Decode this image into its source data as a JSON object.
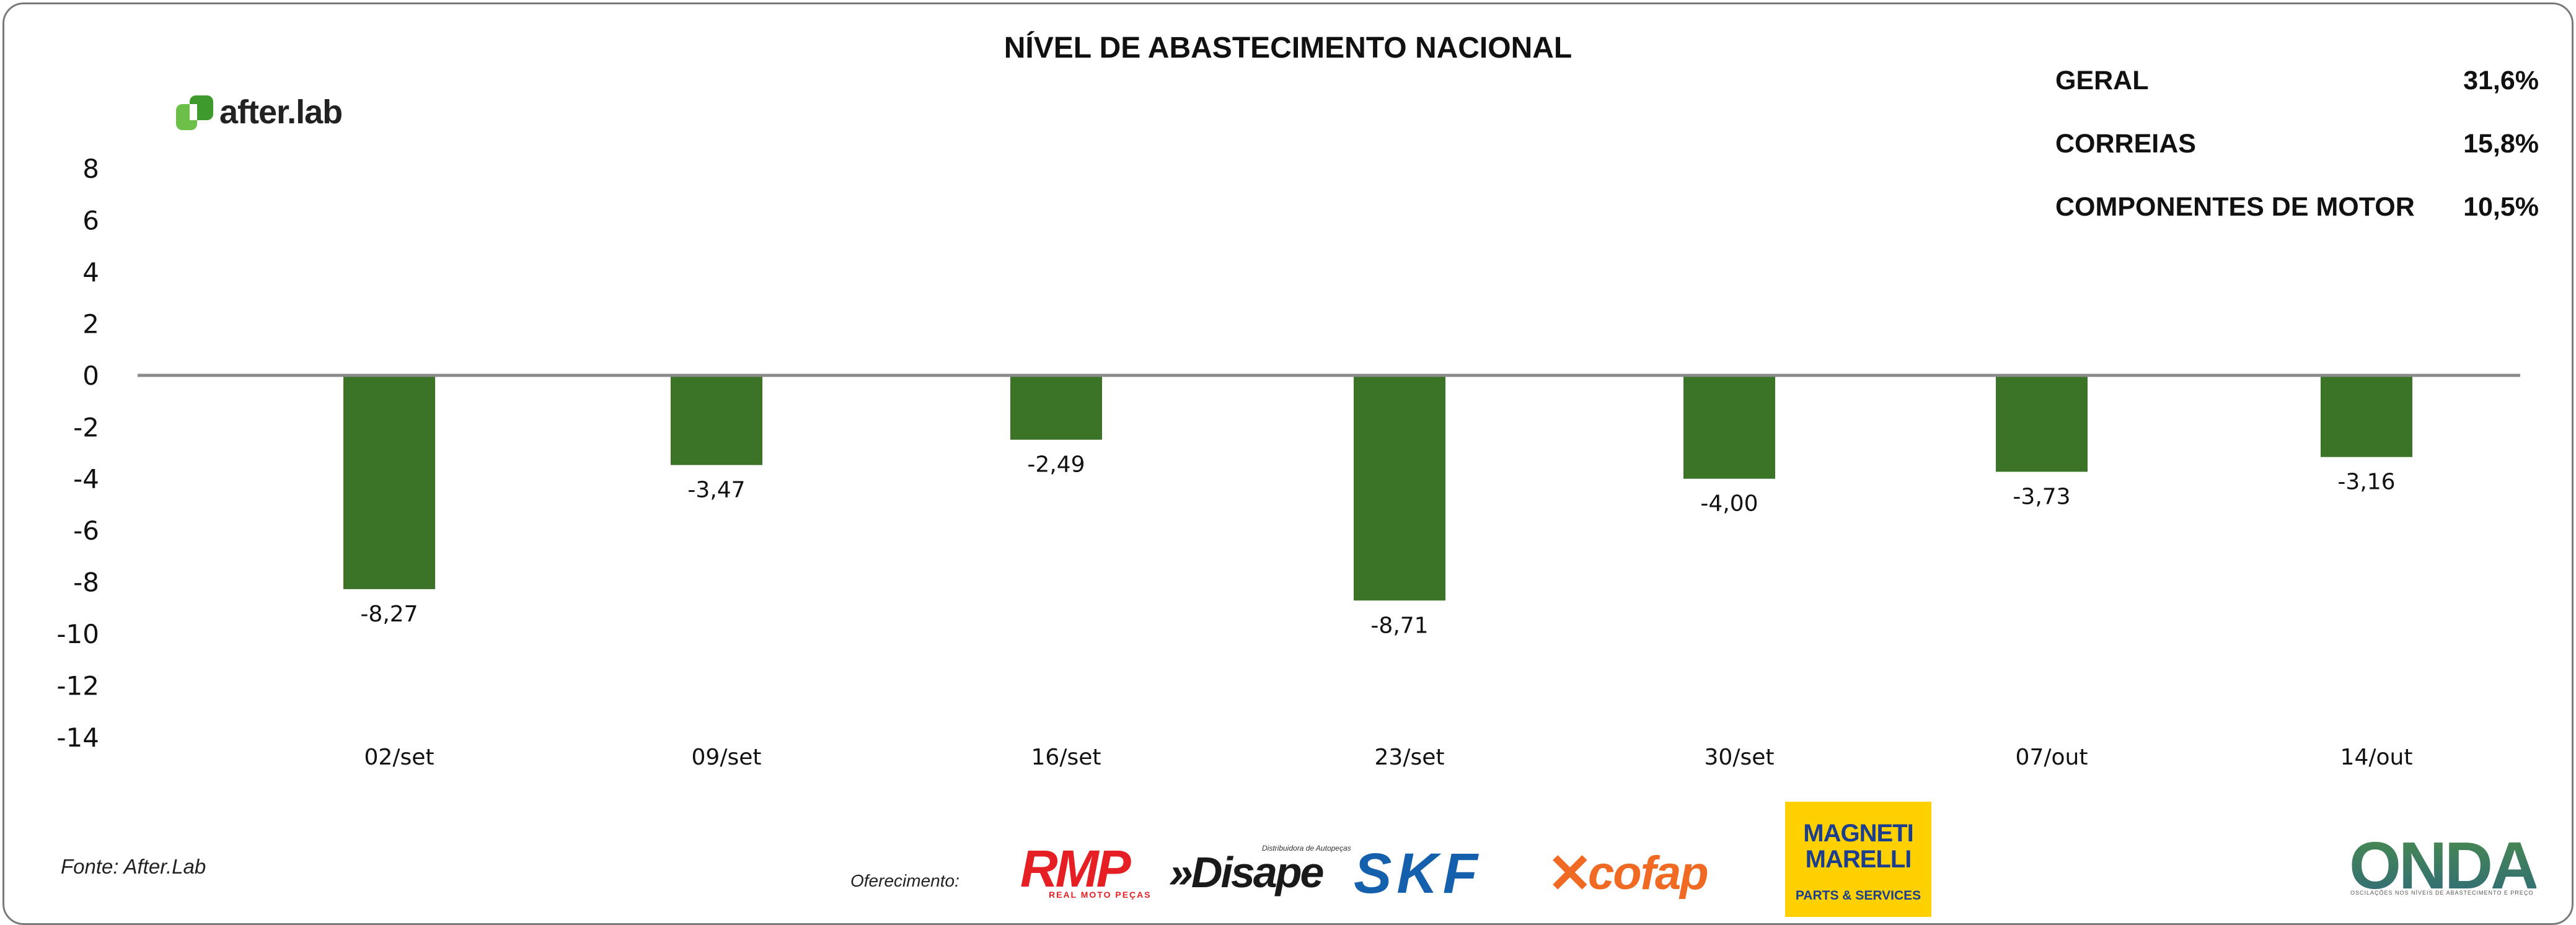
{
  "chart_data": {
    "type": "bar",
    "title": "NÍVEL DE ABASTECIMENTO NACIONAL",
    "categories": [
      "02/set",
      "09/set",
      "16/set",
      "23/set",
      "30/set",
      "07/out",
      "14/out"
    ],
    "values": [
      -8.27,
      -3.47,
      -2.49,
      -8.71,
      -4.0,
      -3.73,
      -3.16
    ],
    "data_labels": [
      "-8,27",
      "-3,47",
      "-2,49",
      "-8,71",
      "-4,00",
      "-3,73",
      "-3,16"
    ],
    "yticks": [
      8,
      6,
      4,
      2,
      0,
      -2,
      -4,
      -6,
      -8,
      -10,
      -12,
      -14
    ],
    "ytick_labels": [
      "8",
      "6",
      "4",
      "2",
      "0",
      "-2",
      "-4",
      "-6",
      "-8",
      "-10",
      "-12",
      "-14"
    ],
    "ylim": [
      -14,
      8
    ],
    "xlabel": "",
    "ylabel": "",
    "grid": false,
    "legend": "none",
    "bar_color": "#3c7427",
    "zero_line_color": "#8a8a8a"
  },
  "kpis": [
    {
      "label": "GERAL",
      "value": "31,6%"
    },
    {
      "label": "CORREIAS",
      "value": "15,8%"
    },
    {
      "label": "COMPONENTES DE MOTOR",
      "value": "10,5%"
    }
  ],
  "branding": {
    "logo_text": "after.lab",
    "logo_color": "#6cc04a",
    "source": "Fonte: After.Lab",
    "offer_label": "Oferecimento:",
    "sponsors": {
      "rmp": "RMP",
      "rmp_tagline": "REAL MOTO PEÇAS",
      "disape": "»Disape",
      "disape_tagline": "Distribuidora de Autopeças",
      "skf": "SKF",
      "cofap": "cofap",
      "magneti_line1": "MAGNETI",
      "magneti_line2": "MARELLI",
      "magneti_sub": "PARTS & SERVICES",
      "onda": "ONDA",
      "onda_tagline": "OSCILAÇÕES NOS NÍVEIS DE ABASTECIMENTO E PREÇO"
    }
  }
}
